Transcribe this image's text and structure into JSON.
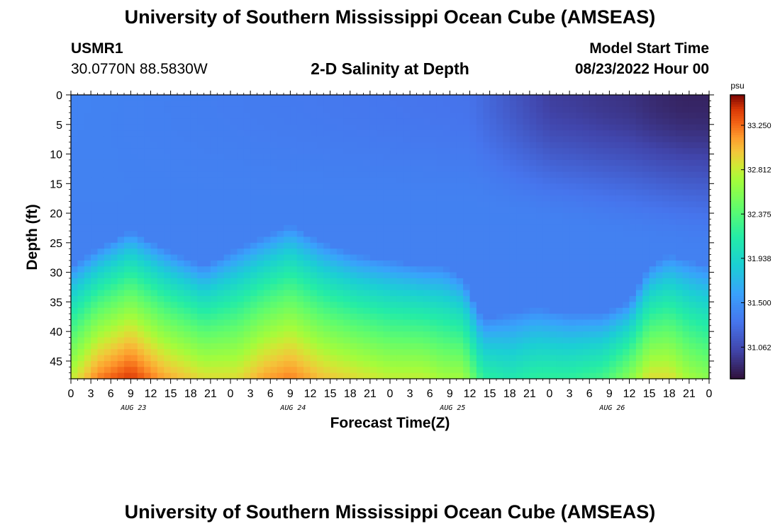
{
  "header": {
    "title": "University of Southern Mississippi Ocean Cube (AMSEAS)",
    "station_id": "USMR1",
    "coordinates": "30.0770N  88.5830W",
    "subtitle": "2-D Salinity at Depth",
    "model_start_label": "Model Start Time",
    "model_start_value": "08/23/2022 Hour 00"
  },
  "footer": {
    "title": "University of Southern Mississippi Ocean Cube (AMSEAS)"
  },
  "chart_data": {
    "type": "heatmap",
    "title": "2-D Salinity at Depth",
    "xlabel": "Forecast Time(Z)",
    "ylabel": "Depth (ft)",
    "x_ticks": [
      "0",
      "3",
      "6",
      "9",
      "12",
      "15",
      "18",
      "21",
      "0",
      "3",
      "6",
      "9",
      "12",
      "15",
      "18",
      "21",
      "0",
      "3",
      "6",
      "9",
      "12",
      "15",
      "18",
      "21",
      "0",
      "3",
      "6",
      "9",
      "12",
      "15",
      "18",
      "21",
      "0"
    ],
    "x_range_hours": [
      0,
      96
    ],
    "date_labels": [
      {
        "hour": 9,
        "label": "AUG 23"
      },
      {
        "hour": 33,
        "label": "AUG 24"
      },
      {
        "hour": 57,
        "label": "AUG 25"
      },
      {
        "hour": 81,
        "label": "AUG 26"
      }
    ],
    "y_ticks": [
      0,
      5,
      10,
      15,
      20,
      25,
      30,
      35,
      40,
      45
    ],
    "ylim": [
      0,
      48
    ],
    "colorbar": {
      "unit": "psu",
      "range": [
        30.75,
        33.55
      ],
      "ticks": [
        33.25,
        32.812,
        32.375,
        31.938,
        31.5,
        31.062
      ],
      "tick_labels": [
        "33.250",
        "32.812",
        "32.375",
        "31.938",
        "31.500",
        "31.062"
      ]
    },
    "surface_salinity_psu": 31.4,
    "halocline_profile": {
      "hours": [
        0,
        4,
        9,
        14,
        20,
        25,
        29,
        33,
        38,
        43,
        48,
        53,
        56,
        59,
        62,
        66,
        70,
        75,
        80,
        84,
        87,
        90,
        93,
        96
      ],
      "depth_ft": [
        36,
        33,
        30,
        33,
        36,
        33,
        31,
        29,
        32,
        34,
        35,
        36,
        36,
        38,
        45,
        44,
        43,
        44,
        44,
        42,
        36,
        34,
        35,
        36
      ],
      "bottom_salinity_psu": [
        32.8,
        33.2,
        33.4,
        33.1,
        32.9,
        32.9,
        33.1,
        33.2,
        33.0,
        32.9,
        32.8,
        32.8,
        32.7,
        32.7,
        32.2,
        32.1,
        32.2,
        32.2,
        32.3,
        32.6,
        32.9,
        32.9,
        32.7,
        32.6
      ]
    },
    "upper_fresh_water": {
      "hours": [
        0,
        60,
        64,
        68,
        72,
        76,
        80,
        84,
        88,
        92,
        96
      ],
      "min_salinity_psu": [
        31.4,
        31.3,
        31.2,
        31.1,
        31.0,
        30.98,
        30.95,
        30.93,
        30.88,
        30.85,
        30.85
      ]
    }
  }
}
